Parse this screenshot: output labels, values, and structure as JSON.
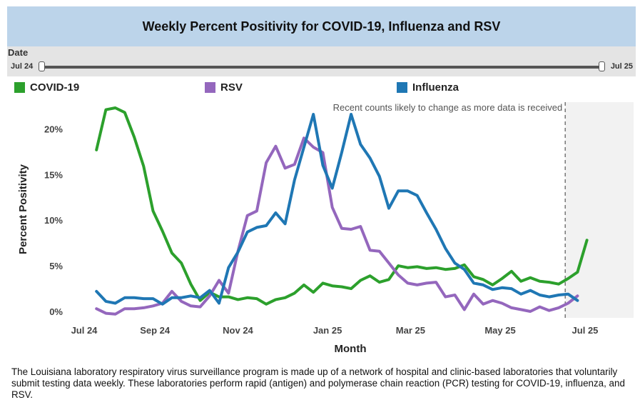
{
  "title": "Weekly Percent Positivity for COVID-19, Influenza and RSV",
  "date_filter": {
    "label": "Date",
    "start": "Jul 24",
    "end": "Jul 25"
  },
  "legend": [
    {
      "name": "COVID-19",
      "color": "#2ca02c"
    },
    {
      "name": "RSV",
      "color": "#9467bd"
    },
    {
      "name": "Influenza",
      "color": "#1f77b4"
    }
  ],
  "annotation": "Recent counts likely to change as more data is received",
  "footnote": "The Louisiana laboratory respiratory virus surveillance program is made up of a network of hospital and clinic-based laboratories that voluntarily submit testing data weekly. These laboratories perform rapid (antigen) and polymerase chain reaction (PCR) testing for COVID-19, influenza, and RSV.",
  "chart_data": {
    "type": "line",
    "xlabel": "Month",
    "ylabel": "Percent Positivity",
    "x_ticks": [
      "Jul 24",
      "Sep 24",
      "Nov 24",
      "Jan 25",
      "Mar 25",
      "May 25",
      "Jul 25"
    ],
    "y_ticks": [
      "0%",
      "5%",
      "10%",
      "15%",
      "20%"
    ],
    "ylim": [
      0,
      23
    ],
    "x_unit": "weeks since Jul 24 tick",
    "xlim": [
      0,
      54
    ],
    "shaded_region_from_week": 51,
    "grid": false,
    "legend_position": "top",
    "series": [
      {
        "name": "COVID-19",
        "color": "#2ca02c",
        "values": [
          17.7,
          22.1,
          22.3,
          21.8,
          19.1,
          15.9,
          11.0,
          8.8,
          6.4,
          5.3,
          3.0,
          1.2,
          2.1,
          1.6,
          1.6,
          1.3,
          1.5,
          1.4,
          0.8,
          1.3,
          1.5,
          2.0,
          2.9,
          2.1,
          3.1,
          2.8,
          2.7,
          2.5,
          3.4,
          3.9,
          3.2,
          3.5,
          5.0,
          4.8,
          4.9,
          4.7,
          4.8,
          4.6,
          4.7,
          5.1,
          3.8,
          3.5,
          2.9,
          3.6,
          4.4,
          3.3,
          3.7,
          3.3,
          3.2,
          3.0,
          3.6,
          4.3,
          7.8
        ]
      },
      {
        "name": "RSV",
        "color": "#9467bd",
        "values": [
          0.3,
          -0.2,
          -0.3,
          0.3,
          0.3,
          0.4,
          0.6,
          0.9,
          2.2,
          1.1,
          0.6,
          0.5,
          1.7,
          3.4,
          2.0,
          6.6,
          10.5,
          11.0,
          16.3,
          18.1,
          15.7,
          16.1,
          19.0,
          18.0,
          17.4,
          11.4,
          9.1,
          9.0,
          9.3,
          6.7,
          6.6,
          5.3,
          4.0,
          3.1,
          2.9,
          3.1,
          3.2,
          1.6,
          1.8,
          0.2,
          1.9,
          0.8,
          1.2,
          0.9,
          0.4,
          0.2,
          0.0,
          0.5,
          0.1,
          0.4,
          0.9,
          1.7
        ]
      },
      {
        "name": "Influenza",
        "color": "#1f77b4",
        "values": [
          2.2,
          1.1,
          0.9,
          1.5,
          1.5,
          1.4,
          1.4,
          0.8,
          1.5,
          1.5,
          1.7,
          1.5,
          2.3,
          0.9,
          4.8,
          6.5,
          8.7,
          9.2,
          9.4,
          10.8,
          9.6,
          14.4,
          18.0,
          21.6,
          16.0,
          13.5,
          17.4,
          21.6,
          18.3,
          16.8,
          14.8,
          11.3,
          13.2,
          13.2,
          12.7,
          10.8,
          9.0,
          6.9,
          5.3,
          4.6,
          3.1,
          2.9,
          2.4,
          2.6,
          2.5,
          1.9,
          2.3,
          1.8,
          1.6,
          1.8,
          1.9,
          1.2
        ]
      }
    ]
  }
}
